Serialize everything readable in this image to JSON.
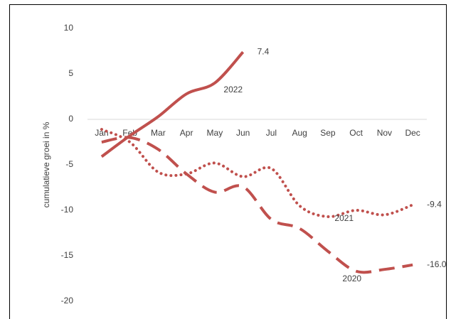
{
  "chart_data": {
    "type": "line",
    "y_label": "cumulatieve groei in %",
    "categories": [
      "Jan",
      "Feb",
      "Mar",
      "Apr",
      "May",
      "Jun",
      "Jul",
      "Aug",
      "Sep",
      "Oct",
      "Nov",
      "Dec"
    ],
    "series": [
      {
        "name": "2022",
        "color": "#c0504d",
        "style": "solid",
        "values": [
          -4.1,
          -1.8,
          0.3,
          2.8,
          4.0,
          7.4,
          null,
          null,
          null,
          null,
          null,
          null
        ],
        "value_labels": [
          null,
          null,
          null,
          null,
          null,
          "7.4",
          null,
          null,
          null,
          null,
          null,
          null
        ]
      },
      {
        "name": "2021",
        "color": "#c0504d",
        "style": "dot",
        "values": [
          -1.1,
          -2.5,
          -5.8,
          -6.0,
          -4.8,
          -6.3,
          -5.4,
          -9.5,
          -10.7,
          -10.0,
          -10.5,
          -9.4
        ],
        "value_labels": [
          null,
          null,
          null,
          null,
          null,
          null,
          null,
          null,
          null,
          null,
          null,
          "-9.4"
        ]
      },
      {
        "name": "2020",
        "color": "#c0504d",
        "style": "dash",
        "values": [
          -2.5,
          -2.0,
          -3.3,
          -6.0,
          -8.0,
          -7.4,
          -11.0,
          -12.0,
          -14.5,
          -16.7,
          -16.5,
          -16.0
        ],
        "value_labels": [
          null,
          null,
          null,
          null,
          null,
          null,
          null,
          null,
          null,
          null,
          null,
          "-16.0"
        ]
      }
    ],
    "ylim": [
      -20,
      10
    ],
    "yticks": [
      -20,
      -15,
      -10,
      -5,
      0,
      5,
      10
    ],
    "grid": false
  }
}
